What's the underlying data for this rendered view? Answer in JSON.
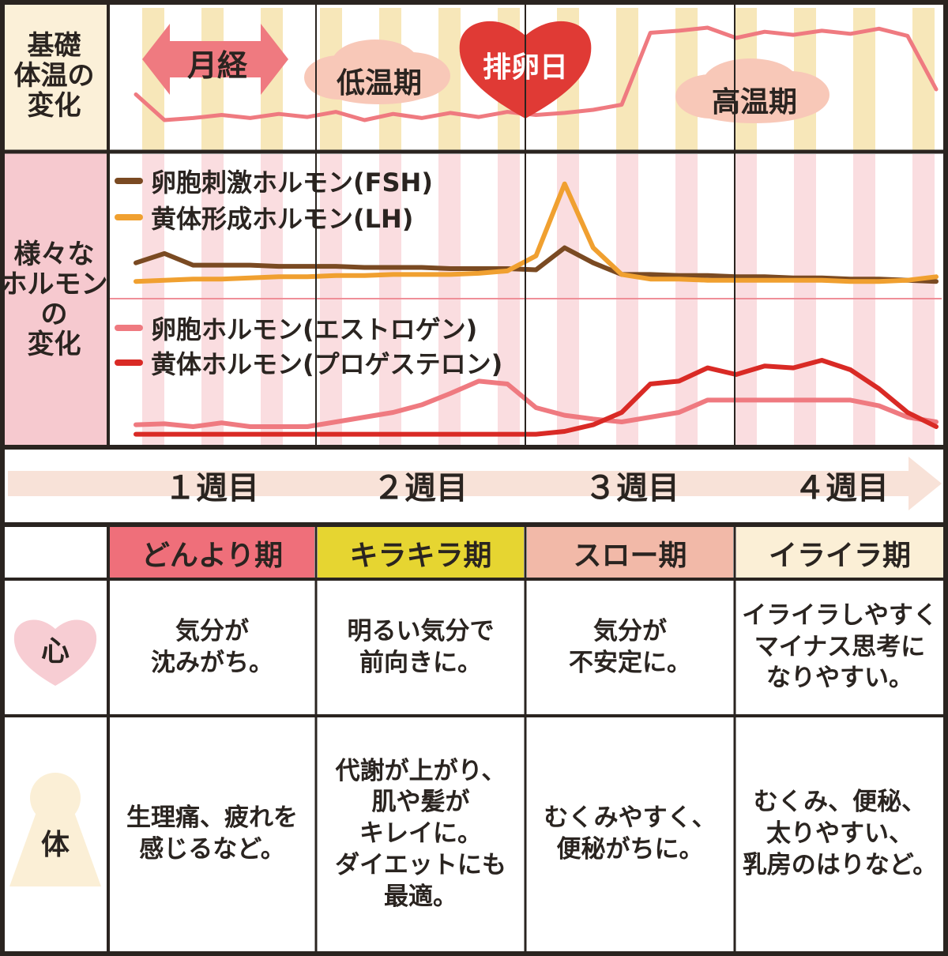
{
  "title": "",
  "row_labels": {
    "bbt": "基礎\n体温の\n変化",
    "hormone": "様々な\nホルモン\nの\n変化",
    "mind": "心",
    "body": "体"
  },
  "bbt_labels": {
    "menstruation": "月経",
    "low_temp": "低温期",
    "ovulation": "排卵日",
    "high_temp": "高温期"
  },
  "weeks": [
    "１週目",
    "２週目",
    "３週目",
    "４週目"
  ],
  "phases": [
    {
      "label": "どんより期",
      "color": "#ef6f7a"
    },
    {
      "label": "キラキラ期",
      "color": "#e6d531"
    },
    {
      "label": "スロー期",
      "color": "#f2b9a8"
    },
    {
      "label": "イライラ期",
      "color": "#fbefd6"
    }
  ],
  "mind_texts": [
    "気分が\n沈みがち。",
    "明るい気分で\n前向きに。",
    "気分が\n不安定に。",
    "イライラしやすく\nマイナス思考に\nなりやすい。"
  ],
  "body_texts": [
    "生理痛、疲れを\n感じるなど。",
    "代謝が上がり、\n肌や髪が\nキレイに。\nダイエットにも\n最適。",
    "むくみやすく、\n便秘がちに。",
    "むくみ、便秘、\n太りやすい、\n乳房のはりなど。"
  ],
  "colors": {
    "border": "#2a2420",
    "bbt_bg": "#fbf0d8",
    "bbt_stripe": "#f7e7b9",
    "hormone_label_bg": "#f6c9cf",
    "hormone_stripe": "#fadde0",
    "arrow": "#f8e2d8",
    "fsh": "#7a4a22",
    "lh": "#f0a030",
    "estrogen": "#ef7a80",
    "progesterone": "#d92a25",
    "bbt_line": "#ef7a80",
    "heart_ovulation": "#e03a35",
    "cloud": "#f8c8b8",
    "mind_heart": "#f7cdd3",
    "body_icon": "#fbefd6",
    "menstruation_arrow": "#ef7a80"
  },
  "chart_data": {
    "type": "line",
    "x": [
      0,
      1,
      2,
      3,
      4,
      5,
      6,
      7,
      8,
      9,
      10,
      11,
      12,
      13,
      14,
      15,
      16,
      17,
      18,
      19,
      20,
      21,
      22,
      23,
      24,
      25,
      26,
      27,
      28
    ],
    "xlabel": "",
    "ylabel": "",
    "xlim": [
      0,
      28
    ],
    "grid": false,
    "legend_position": "top-left",
    "series": [
      {
        "name": "基礎体温",
        "panel": "bbt",
        "values": [
          0.35,
          0.1,
          0.12,
          0.15,
          0.12,
          0.16,
          0.13,
          0.18,
          0.1,
          0.16,
          0.12,
          0.17,
          0.13,
          0.18,
          0.15,
          0.17,
          0.2,
          0.25,
          0.95,
          0.97,
          1.0,
          0.9,
          0.96,
          0.93,
          0.97,
          0.94,
          0.99,
          0.92,
          0.4
        ]
      },
      {
        "name": "卵胞刺激ホルモン(FSH)",
        "panel": "hormone_top",
        "values": [
          0.22,
          0.3,
          0.2,
          0.2,
          0.2,
          0.19,
          0.19,
          0.19,
          0.18,
          0.18,
          0.18,
          0.17,
          0.17,
          0.17,
          0.16,
          0.35,
          0.22,
          0.12,
          0.12,
          0.11,
          0.11,
          0.1,
          0.1,
          0.09,
          0.09,
          0.08,
          0.08,
          0.07,
          0.06
        ]
      },
      {
        "name": "黄体形成ホルモン(LH)",
        "panel": "hormone_top",
        "values": [
          0.06,
          0.07,
          0.08,
          0.08,
          0.09,
          0.1,
          0.1,
          0.11,
          0.11,
          0.12,
          0.12,
          0.12,
          0.13,
          0.15,
          0.28,
          0.9,
          0.35,
          0.12,
          0.08,
          0.08,
          0.07,
          0.07,
          0.07,
          0.07,
          0.07,
          0.06,
          0.06,
          0.07,
          0.1
        ]
      },
      {
        "name": "卵胞ホルモン(エストロゲン)",
        "panel": "hormone_bottom",
        "values": [
          0.12,
          0.13,
          0.1,
          0.14,
          0.1,
          0.1,
          0.1,
          0.15,
          0.2,
          0.25,
          0.33,
          0.45,
          0.58,
          0.55,
          0.3,
          0.22,
          0.18,
          0.15,
          0.2,
          0.25,
          0.38,
          0.38,
          0.38,
          0.38,
          0.38,
          0.38,
          0.32,
          0.2,
          0.15
        ]
      },
      {
        "name": "黄体ホルモン(プロゲステロン)",
        "panel": "hormone_bottom",
        "values": [
          0.02,
          0.02,
          0.02,
          0.02,
          0.02,
          0.02,
          0.02,
          0.02,
          0.02,
          0.02,
          0.02,
          0.02,
          0.02,
          0.02,
          0.02,
          0.05,
          0.12,
          0.25,
          0.55,
          0.58,
          0.72,
          0.65,
          0.74,
          0.72,
          0.8,
          0.7,
          0.5,
          0.25,
          0.1
        ]
      }
    ]
  }
}
